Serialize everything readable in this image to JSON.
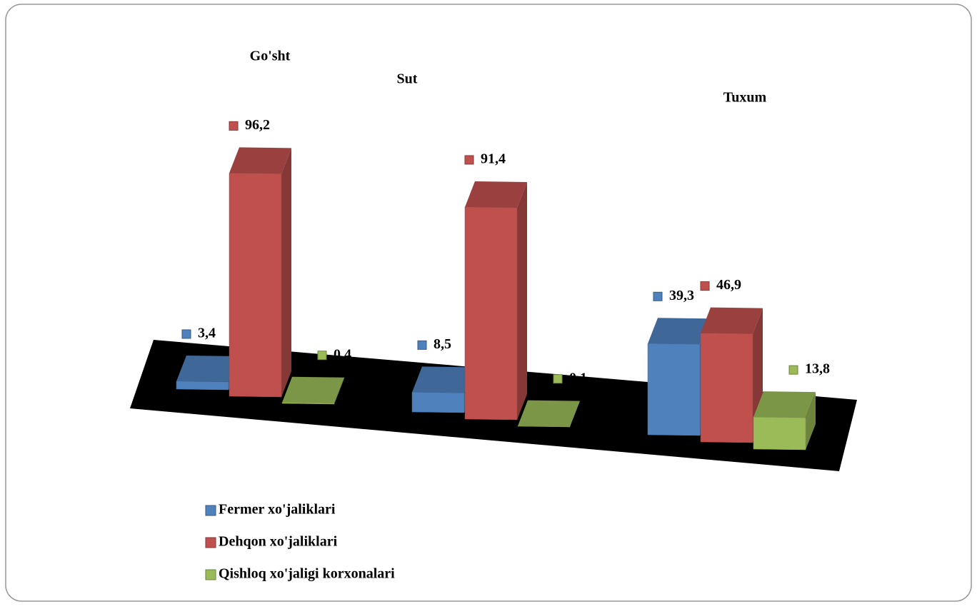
{
  "chart_data": {
    "type": "bar3d",
    "categories": [
      "Go'sht",
      "Sut",
      "Tuxum"
    ],
    "series": [
      {
        "name": "Fermer xo'jaliklari",
        "color": "#4f81bd",
        "values": [
          3.4,
          8.5,
          39.3
        ],
        "value_labels": [
          "3,4",
          "8,5",
          "39,3"
        ]
      },
      {
        "name": "Dehqon xo'jaliklari",
        "color": "#c0504d",
        "values": [
          96.2,
          91.4,
          46.9
        ],
        "value_labels": [
          "96,2",
          "91,4",
          "46,9"
        ]
      },
      {
        "name": "Qishloq xo'jaligi korxonalari",
        "color": "#9bbb59",
        "values": [
          0.4,
          0.1,
          13.8
        ],
        "value_labels": [
          "0,4",
          "0,1",
          "13,8"
        ]
      }
    ],
    "legend": "bottom-left"
  }
}
